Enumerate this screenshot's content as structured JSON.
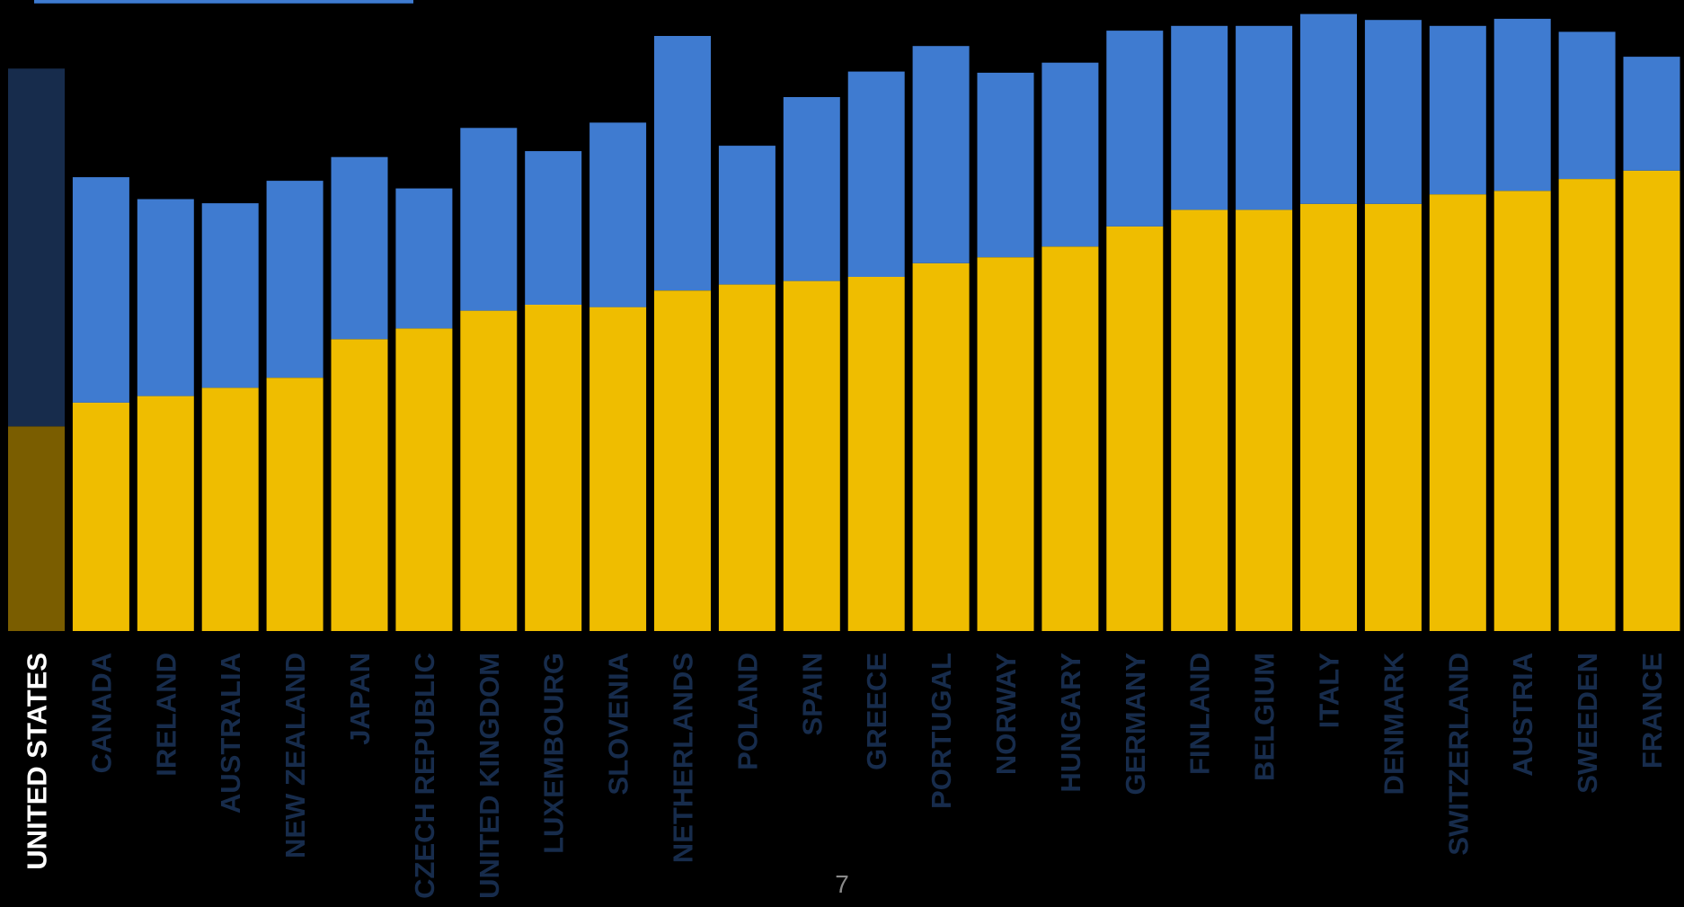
{
  "page_number": "7",
  "colors": {
    "background": "#000000",
    "top_segment": "#3f7bd0",
    "bottom_segment": "#efbd00",
    "highlight_top_segment": "#172c4c",
    "highlight_bottom_segment": "#7a5d00",
    "category_label": "#172c4c",
    "highlight_label": "#ffffff"
  },
  "chart_data": {
    "type": "bar",
    "stacked": true,
    "title": "",
    "xlabel": "",
    "ylabel": "",
    "ylim": [
      0,
      100
    ],
    "grid": false,
    "legend": "none",
    "highlighted_category": "UNITED STATES",
    "categories": [
      "UNITED STATES",
      "CANADA",
      "IRELAND",
      "AUSTRALIA",
      "NEW ZEALAND",
      "JAPAN",
      "CZECH REPUBLIC",
      "UNITED KINGDOM",
      "LUXEMBOURG",
      "SLOVENIA",
      "NETHERLANDS",
      "POLAND",
      "SPAIN",
      "GREECE",
      "PORTUGAL",
      "NORWAY",
      "HUNGARY",
      "GERMANY",
      "FINLAND",
      "BELGIUM",
      "ITALY",
      "DENMARK",
      "SWITZERLAND",
      "AUSTRIA",
      "SWEEDEN",
      "FRANCE"
    ],
    "series": [
      {
        "values": [
          34.5,
          38.5,
          39.6,
          41.0,
          42.7,
          49.2,
          51.0,
          54.0,
          55.0,
          54.6,
          57.4,
          58.4,
          59.0,
          59.7,
          62.0,
          63.0,
          64.8,
          68.2,
          71.0,
          71.0,
          72.0,
          72.0,
          73.6,
          74.2,
          76.2,
          77.6
        ]
      },
      {
        "values": [
          60.3,
          38.0,
          33.2,
          31.1,
          33.2,
          30.7,
          23.6,
          30.8,
          25.9,
          31.1,
          42.9,
          23.4,
          31.0,
          34.6,
          36.6,
          31.1,
          31.0,
          33.0,
          31.0,
          31.0,
          32.0,
          31.0,
          28.4,
          29.0,
          24.8,
          19.2
        ]
      }
    ]
  }
}
